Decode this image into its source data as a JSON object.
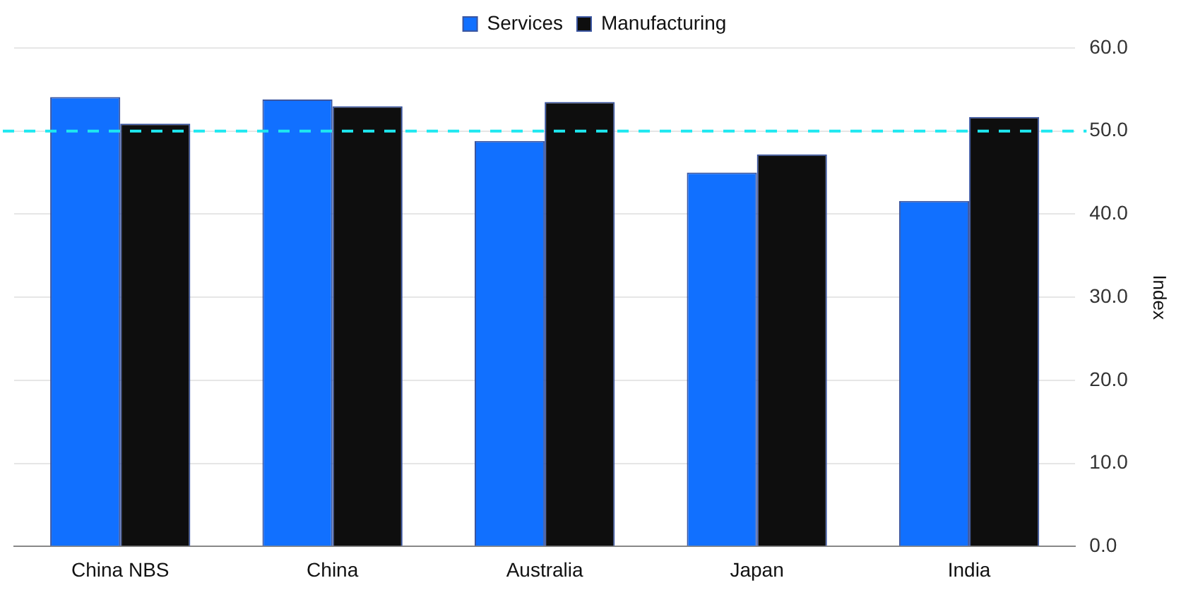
{
  "chart_data": {
    "type": "bar",
    "ylabel": "Index",
    "categories": [
      "China NBS",
      "China",
      "Australia",
      "Japan",
      "India"
    ],
    "series": [
      {
        "name": "Services",
        "color": "#1170ff",
        "values": [
          54.1,
          53.8,
          48.8,
          45.0,
          41.6
        ]
      },
      {
        "name": "Manufacturing",
        "color": "#0e0e0e",
        "values": [
          50.9,
          53.0,
          53.5,
          47.2,
          51.7
        ]
      }
    ],
    "ylim": [
      0,
      60
    ],
    "yticks": [
      {
        "value": 0,
        "label": "0.0"
      },
      {
        "value": 10,
        "label": "10.0"
      },
      {
        "value": 20,
        "label": "20.0"
      },
      {
        "value": 30,
        "label": "30.0"
      },
      {
        "value": 40,
        "label": "40.0"
      },
      {
        "value": 50,
        "label": "50.0"
      },
      {
        "value": 60,
        "label": "60.0"
      }
    ],
    "grid": "y",
    "legend": "top",
    "ref_lines": [
      {
        "axis": "y",
        "value": 50,
        "color": "#1ee8f0",
        "line_style": "dashed"
      }
    ]
  }
}
